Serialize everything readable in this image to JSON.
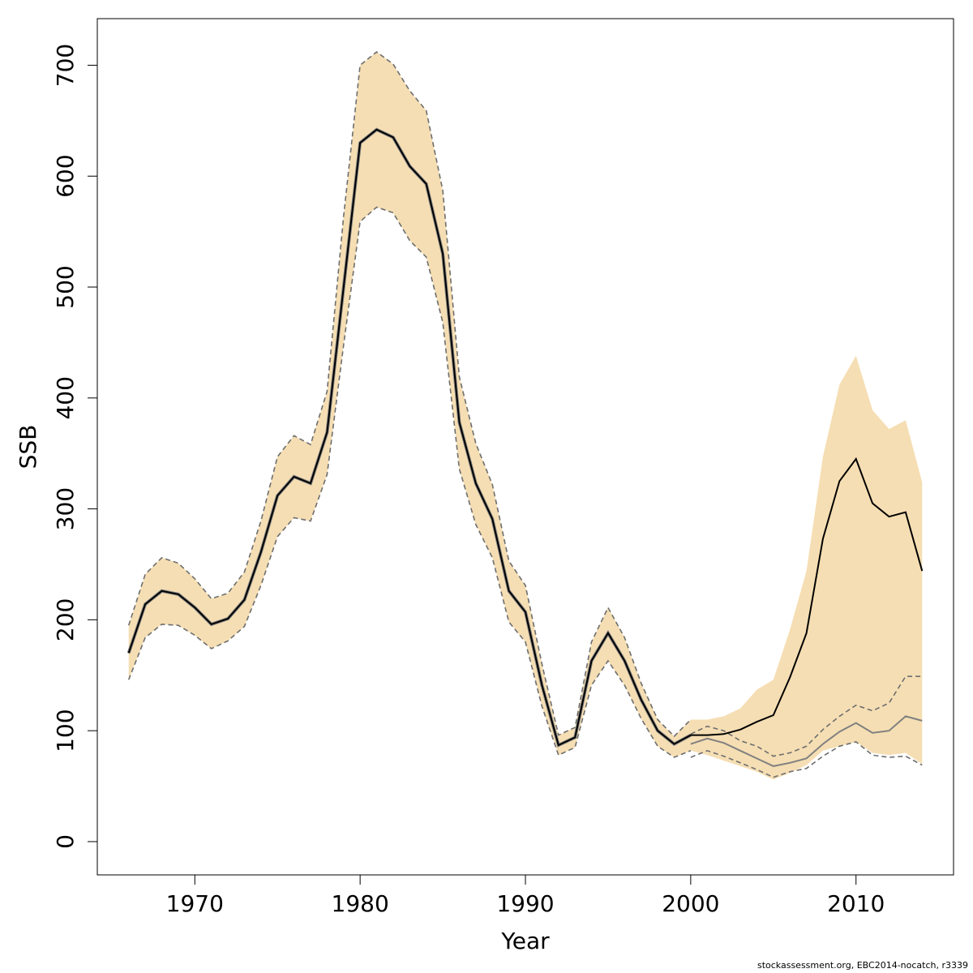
{
  "chart_data": {
    "type": "line",
    "xlabel": "Year",
    "ylabel": "SSB",
    "xlim": [
      1964.1,
      2015.9
    ],
    "ylim": [
      -30,
      742
    ],
    "x_ticks": [
      1970,
      1980,
      1990,
      2000,
      2010
    ],
    "y_ticks": [
      0,
      100,
      200,
      300,
      400,
      500,
      600,
      700
    ],
    "colors": {
      "band": "#f5deb3",
      "band_edge": "#6e6e6e",
      "recent": "#000000",
      "previous": "#808080"
    },
    "series": [
      {
        "key": "recent",
        "x": [
          1966,
          1967,
          1968,
          1969,
          1970,
          1971,
          1972,
          1973,
          1974,
          1975,
          1976,
          1977,
          1978,
          1979,
          1980,
          1981,
          1982,
          1983,
          1984,
          1985,
          1986,
          1987,
          1988,
          1989,
          1990,
          1991,
          1992,
          1993,
          1994,
          1995,
          1996,
          1997,
          1998,
          1999,
          2000,
          2001,
          2002,
          2003,
          2004,
          2005,
          2006,
          2007,
          2008,
          2009,
          2010,
          2011,
          2012,
          2013,
          2014
        ],
        "values": [
          170,
          214,
          226,
          223,
          211,
          196,
          201,
          218,
          261,
          312,
          329,
          323,
          369,
          500,
          630,
          642,
          635,
          609,
          593,
          530,
          378,
          323,
          291,
          226,
          207,
          141,
          87,
          94,
          163,
          188,
          163,
          128,
          100,
          88,
          96,
          96,
          97,
          101,
          108,
          114,
          148,
          188,
          273,
          325,
          345,
          305,
          293,
          297,
          244
        ],
        "lower": [
          146,
          184,
          196,
          195,
          186,
          174,
          181,
          194,
          231,
          275,
          292,
          289,
          331,
          448,
          559,
          572,
          567,
          542,
          527,
          468,
          336,
          286,
          256,
          198,
          180,
          122,
          78,
          85,
          141,
          163,
          141,
          111,
          86,
          76,
          82,
          78,
          73,
          68,
          63,
          56,
          62,
          69,
          82,
          86,
          90,
          80,
          78,
          80,
          70
        ],
        "upper": [
          195,
          241,
          256,
          251,
          237,
          219,
          224,
          243,
          289,
          347,
          366,
          358,
          406,
          564,
          700,
          712,
          701,
          677,
          659,
          587,
          419,
          359,
          322,
          253,
          231,
          160,
          96,
          103,
          180,
          211,
          184,
          143,
          110,
          95,
          110,
          110,
          113,
          120,
          137,
          146,
          191,
          244,
          347,
          412,
          438,
          389,
          372,
          380,
          324
        ]
      },
      {
        "key": "previous",
        "x": [
          2000,
          2001,
          2002,
          2003,
          2004,
          2005,
          2006,
          2007,
          2008,
          2009,
          2010,
          2011,
          2012,
          2013,
          2014
        ],
        "values": [
          88,
          93,
          89,
          82,
          75,
          68,
          71,
          75,
          88,
          99,
          107,
          98,
          100,
          113,
          109
        ],
        "lower": [
          76,
          82,
          77,
          71,
          65,
          58,
          63,
          66,
          77,
          86,
          90,
          78,
          76,
          77,
          69
        ],
        "upper": [
          97,
          104,
          100,
          91,
          86,
          77,
          80,
          86,
          101,
          113,
          123,
          118,
          125,
          149,
          149
        ]
      }
    ]
  },
  "credit": "stockassessment.org, EBC2014-nocatch, r3339"
}
